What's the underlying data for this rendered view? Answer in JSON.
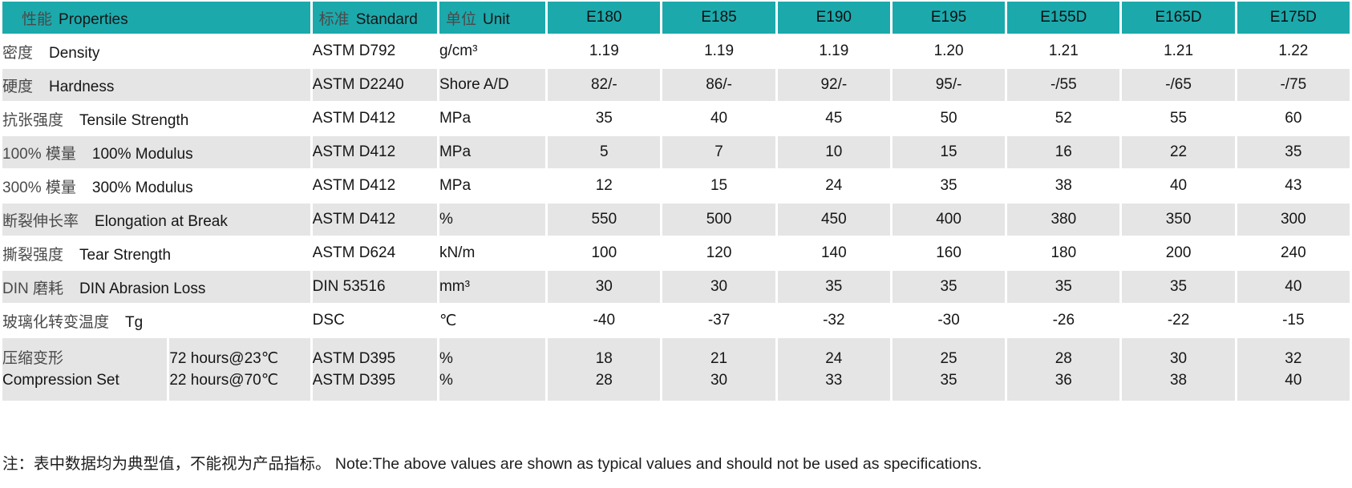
{
  "table": {
    "header": {
      "properties_cn": "性能",
      "properties_en": "Properties",
      "standard_cn": "标准",
      "standard_en": "Standard",
      "unit_cn": "单位",
      "unit_en": "Unit",
      "grades": [
        "E180",
        "E185",
        "E190",
        "E195",
        "E155D",
        "E165D",
        "E175D"
      ]
    },
    "rows": [
      {
        "cn": "密度",
        "en": "Density",
        "standard": "ASTM D792",
        "unit": "g/cm³",
        "values": [
          "1.19",
          "1.19",
          "1.19",
          "1.20",
          "1.21",
          "1.21",
          "1.22"
        ]
      },
      {
        "cn": "硬度",
        "en": "Hardness",
        "standard": "ASTM D2240",
        "unit": "Shore A/D",
        "values": [
          "82/-",
          "86/-",
          "92/-",
          "95/-",
          "-/55",
          "-/65",
          "-/75"
        ]
      },
      {
        "cn": "抗张强度",
        "en": "Tensile Strength",
        "standard": "ASTM D412",
        "unit": "MPa",
        "values": [
          "35",
          "40",
          "45",
          "50",
          "52",
          "55",
          "60"
        ]
      },
      {
        "cn": "100% 模量",
        "en": "100% Modulus",
        "standard": "ASTM D412",
        "unit": "MPa",
        "values": [
          "5",
          "7",
          "10",
          "15",
          "16",
          "22",
          "35"
        ]
      },
      {
        "cn": "300% 模量",
        "en": "300% Modulus",
        "standard": "ASTM D412",
        "unit": "MPa",
        "values": [
          "12",
          "15",
          "24",
          "35",
          "38",
          "40",
          "43"
        ]
      },
      {
        "cn": "断裂伸长率",
        "en": "Elongation at Break",
        "standard": "ASTM D412",
        "unit": "%",
        "values": [
          "550",
          "500",
          "450",
          "400",
          "380",
          "350",
          "300"
        ]
      },
      {
        "cn": "撕裂强度",
        "en": "Tear Strength",
        "standard": "ASTM D624",
        "unit": "kN/m",
        "values": [
          "100",
          "120",
          "140",
          "160",
          "180",
          "200",
          "240"
        ]
      },
      {
        "cn": "DIN 磨耗",
        "en": "DIN Abrasion Loss",
        "standard": "DIN 53516",
        "unit": "mm³",
        "values": [
          "30",
          "30",
          "35",
          "35",
          "35",
          "35",
          "40"
        ]
      },
      {
        "cn": "玻璃化转变温度",
        "en": "Tg",
        "standard": "DSC",
        "unit": "℃",
        "values": [
          "-40",
          "-37",
          "-32",
          "-30",
          "-26",
          "-22",
          "-15"
        ]
      }
    ],
    "compression": {
      "cn": "压缩变形",
      "en": "Compression Set",
      "conditions": [
        "72 hours@23℃",
        "22 hours@70℃"
      ],
      "standards": [
        "ASTM D395",
        "ASTM D395"
      ],
      "units": [
        "%",
        "%"
      ],
      "values": [
        [
          "18",
          "21",
          "24",
          "25",
          "28",
          "30",
          "32"
        ],
        [
          "28",
          "30",
          "33",
          "35",
          "36",
          "38",
          "40"
        ]
      ]
    }
  },
  "note": "注：表中数据均为典型值，不能视为产品指标。 Note:The above values are shown as typical values and should not be used as specifications.",
  "colors": {
    "header_bg": "#1CA9AC",
    "row_alt_bg": "#E5E5E5",
    "page_bg": "#FFFFFF"
  }
}
